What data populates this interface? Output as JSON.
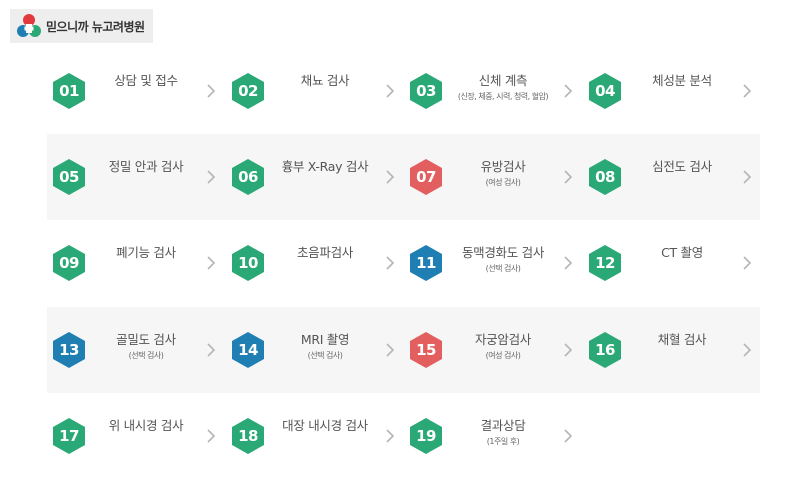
{
  "logo": {
    "text": "믿으니까 뉴고려병원"
  },
  "colors": {
    "green": "#2aa876",
    "red": "#e35f5f",
    "blue": "#1f7fb3"
  },
  "steps": [
    {
      "num": "01",
      "title": "상담 및 접수",
      "sub": "",
      "color": "green"
    },
    {
      "num": "02",
      "title": "채뇨 검사",
      "sub": "",
      "color": "green"
    },
    {
      "num": "03",
      "title": "신체 계측",
      "sub": "(신장, 체중, 시력, 청력, 혈압)",
      "color": "green"
    },
    {
      "num": "04",
      "title": "체성분 분석",
      "sub": "",
      "color": "green"
    },
    {
      "num": "05",
      "title": "정밀 안과 검사",
      "sub": "",
      "color": "green"
    },
    {
      "num": "06",
      "title": "흉부 X-Ray 검사",
      "sub": "",
      "color": "green"
    },
    {
      "num": "07",
      "title": "유방검사",
      "sub": "(여성 검사)",
      "color": "red"
    },
    {
      "num": "08",
      "title": "심전도 검사",
      "sub": "",
      "color": "green"
    },
    {
      "num": "09",
      "title": "폐기능 검사",
      "sub": "",
      "color": "green"
    },
    {
      "num": "10",
      "title": "초음파검사",
      "sub": "",
      "color": "green"
    },
    {
      "num": "11",
      "title": "동맥경화도 검사",
      "sub": "(선택 검사)",
      "color": "blue"
    },
    {
      "num": "12",
      "title": "CT 촬영",
      "sub": "",
      "color": "green"
    },
    {
      "num": "13",
      "title": "골밀도 검사",
      "sub": "(선택 검사)",
      "color": "blue"
    },
    {
      "num": "14",
      "title": "MRI 촬영",
      "sub": "(선택 검사)",
      "color": "blue"
    },
    {
      "num": "15",
      "title": "자궁암검사",
      "sub": "(여성 검사)",
      "color": "red"
    },
    {
      "num": "16",
      "title": "채혈 검사",
      "sub": "",
      "color": "green"
    },
    {
      "num": "17",
      "title": "위 내시경 검사",
      "sub": "",
      "color": "green"
    },
    {
      "num": "18",
      "title": "대장 내시경 검사",
      "sub": "",
      "color": "green"
    },
    {
      "num": "19",
      "title": "결과상담",
      "sub": "(1주일 후)",
      "color": "green"
    }
  ]
}
